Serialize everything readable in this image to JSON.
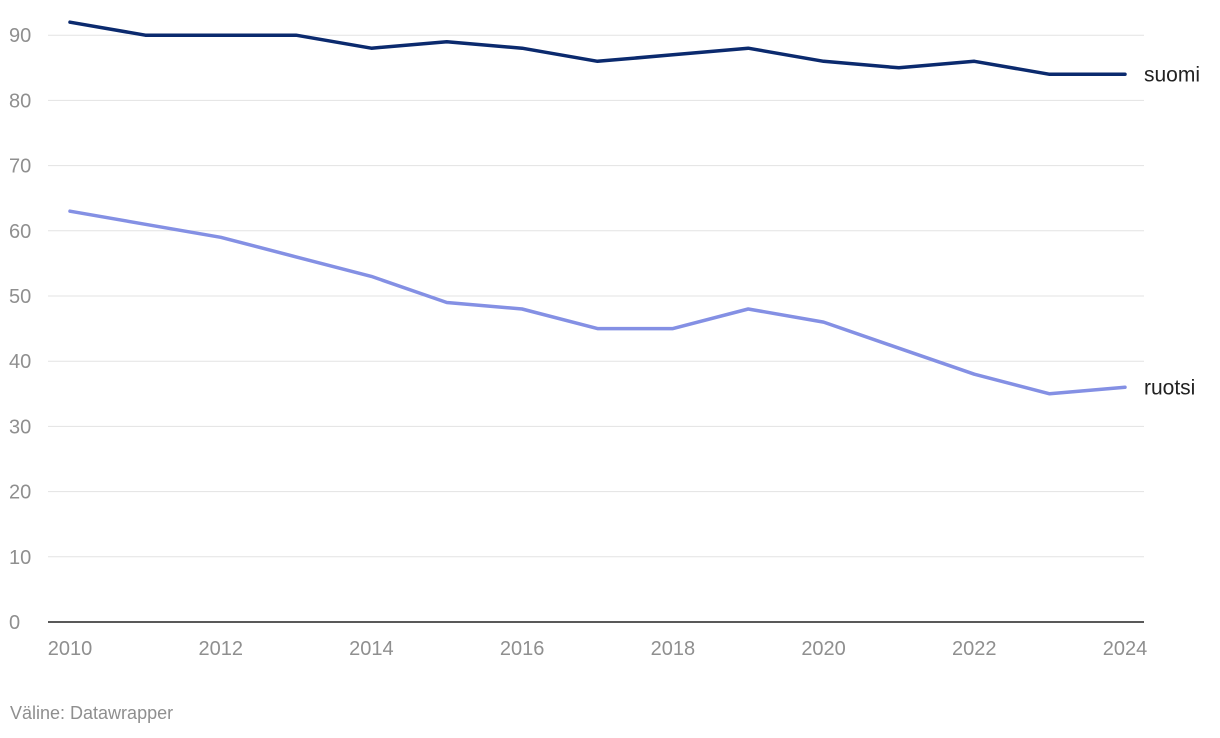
{
  "chart_data": {
    "type": "line",
    "x": [
      2010,
      2011,
      2012,
      2013,
      2014,
      2015,
      2016,
      2017,
      2018,
      2019,
      2020,
      2021,
      2022,
      2023,
      2024
    ],
    "series": [
      {
        "name": "suomi",
        "color": "#0b2a6e",
        "values": [
          92,
          90,
          90,
          90,
          88,
          89,
          88,
          86,
          87,
          88,
          86,
          85,
          86,
          84,
          84
        ]
      },
      {
        "name": "ruotsi",
        "color": "#8490e4",
        "values": [
          63,
          61,
          59,
          56,
          53,
          49,
          48,
          45,
          45,
          48,
          46,
          42,
          38,
          35,
          36
        ]
      }
    ],
    "xticks": [
      "2010",
      "2012",
      "2014",
      "2016",
      "2018",
      "2020",
      "2022",
      "2024"
    ],
    "yticks": [
      "0",
      "10",
      "20",
      "30",
      "40",
      "50",
      "60",
      "70",
      "80",
      "90"
    ],
    "ylim": [
      0,
      95
    ],
    "xlim": [
      2010,
      2024
    ],
    "grid": true,
    "legend": "inline-right",
    "title": "",
    "xlabel": "",
    "ylabel": ""
  },
  "footer": {
    "source": "Väline: Datawrapper"
  }
}
